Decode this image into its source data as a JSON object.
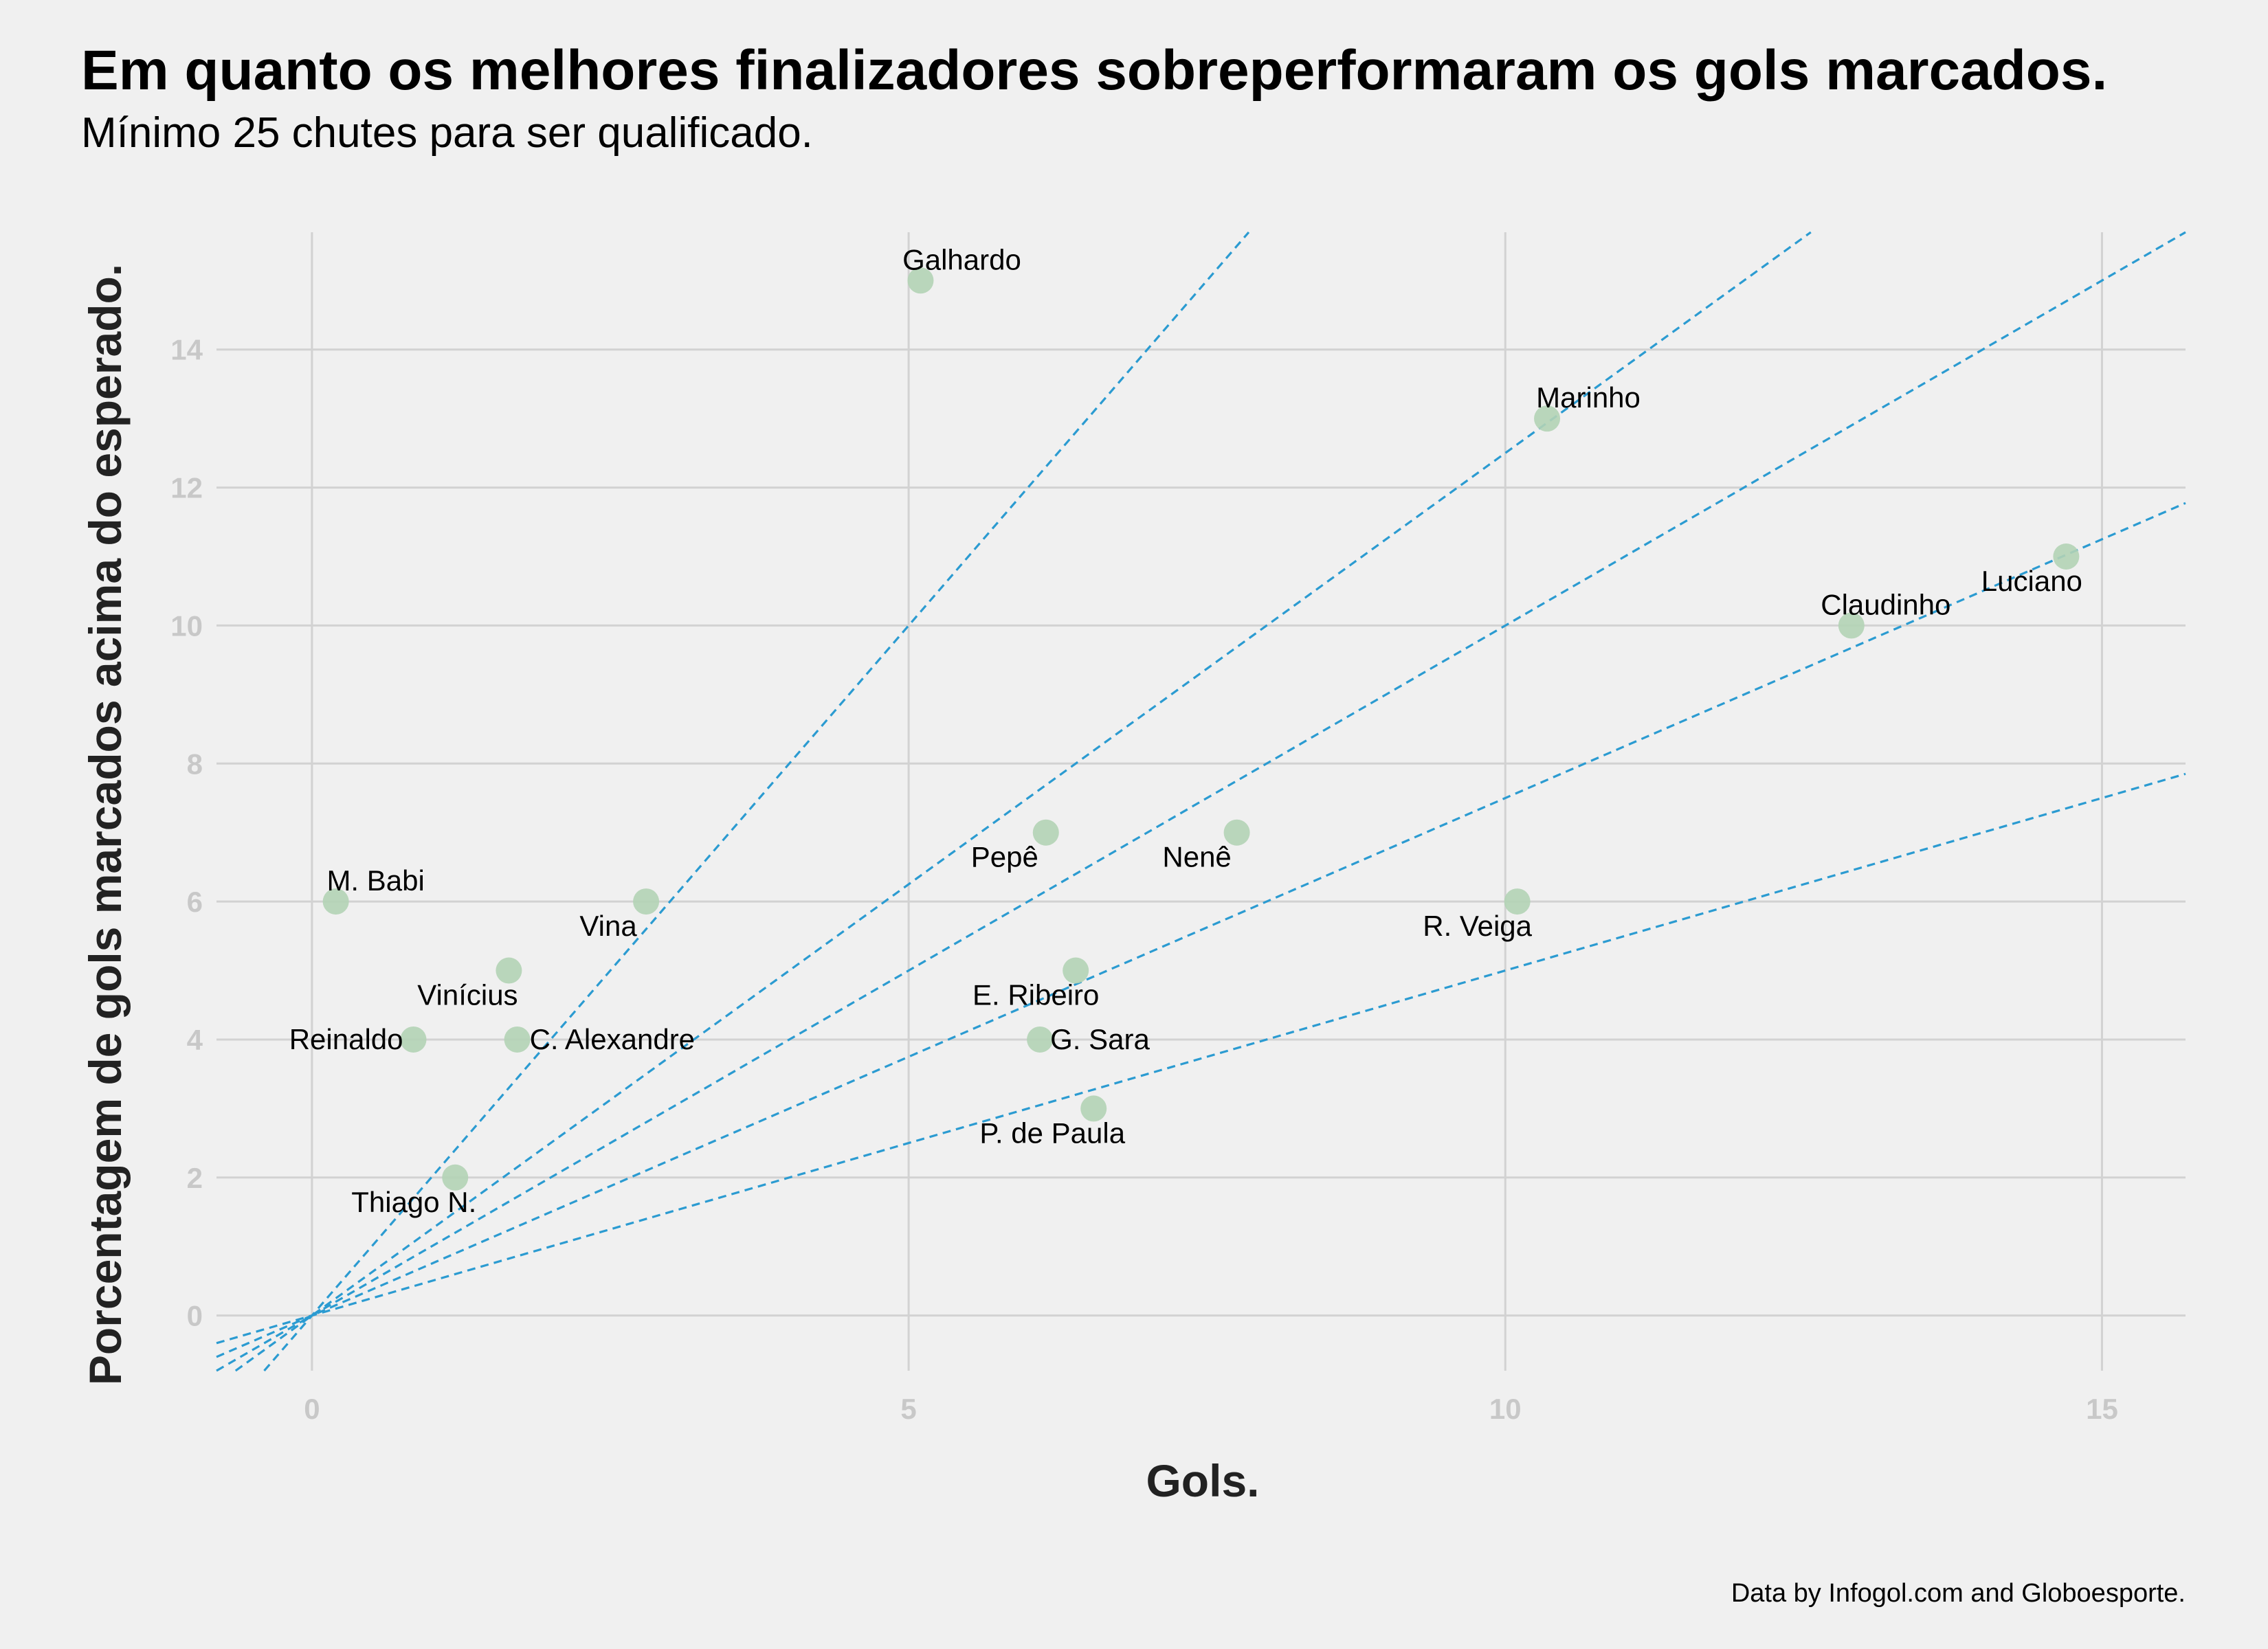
{
  "header": {
    "title": "Em quanto os melhores finalizadores sobreperformaram os gols marcados.",
    "subtitle": "Mínimo 25 chutes para ser qualificado."
  },
  "caption": "Data by Infogol.com and Globoesporte.",
  "colors": {
    "background": "#f0f0f0",
    "grid": "#d2d2d2",
    "points": "#b3d3b5",
    "reference_lines": "#2b9bd1",
    "tick_text": "#c8c8c8"
  },
  "chart_data": {
    "type": "scatter",
    "xlabel": "Gols.",
    "ylabel": "Porcentagem de gols marcados acima do esperado.",
    "xlim": [
      -0.8,
      15.7
    ],
    "ylim": [
      -0.8,
      15.7
    ],
    "x_ticks": [
      0,
      5,
      10,
      15
    ],
    "y_ticks": [
      0,
      2,
      4,
      6,
      8,
      10,
      12,
      14
    ],
    "grid": true,
    "reference_lines": {
      "style": "dashed",
      "through_origin": true,
      "slopes": [
        2,
        1.25,
        1,
        0.75,
        0.5
      ]
    },
    "points": [
      {
        "name": "Galhardo",
        "x": 5.1,
        "y": 15
      },
      {
        "name": "Marinho",
        "x": 10.35,
        "y": 13
      },
      {
        "name": "Luciano",
        "x": 14.7,
        "y": 11
      },
      {
        "name": "Claudinho",
        "x": 12.9,
        "y": 10
      },
      {
        "name": "Pepê",
        "x": 6.15,
        "y": 7
      },
      {
        "name": "Nenê",
        "x": 7.75,
        "y": 7
      },
      {
        "name": "M. Babi",
        "x": 0.2,
        "y": 6
      },
      {
        "name": "Vina",
        "x": 2.8,
        "y": 6
      },
      {
        "name": "R. Veiga",
        "x": 10.1,
        "y": 6
      },
      {
        "name": "Vinícius",
        "x": 1.65,
        "y": 5
      },
      {
        "name": "E. Ribeiro",
        "x": 6.4,
        "y": 5
      },
      {
        "name": "Reinaldo",
        "x": 0.85,
        "y": 4
      },
      {
        "name": "C. Alexandre",
        "x": 1.72,
        "y": 4
      },
      {
        "name": "G. Sara",
        "x": 6.1,
        "y": 4
      },
      {
        "name": "P. de Paula",
        "x": 6.55,
        "y": 3
      },
      {
        "name": "Thiago N.",
        "x": 1.2,
        "y": 2
      }
    ]
  }
}
